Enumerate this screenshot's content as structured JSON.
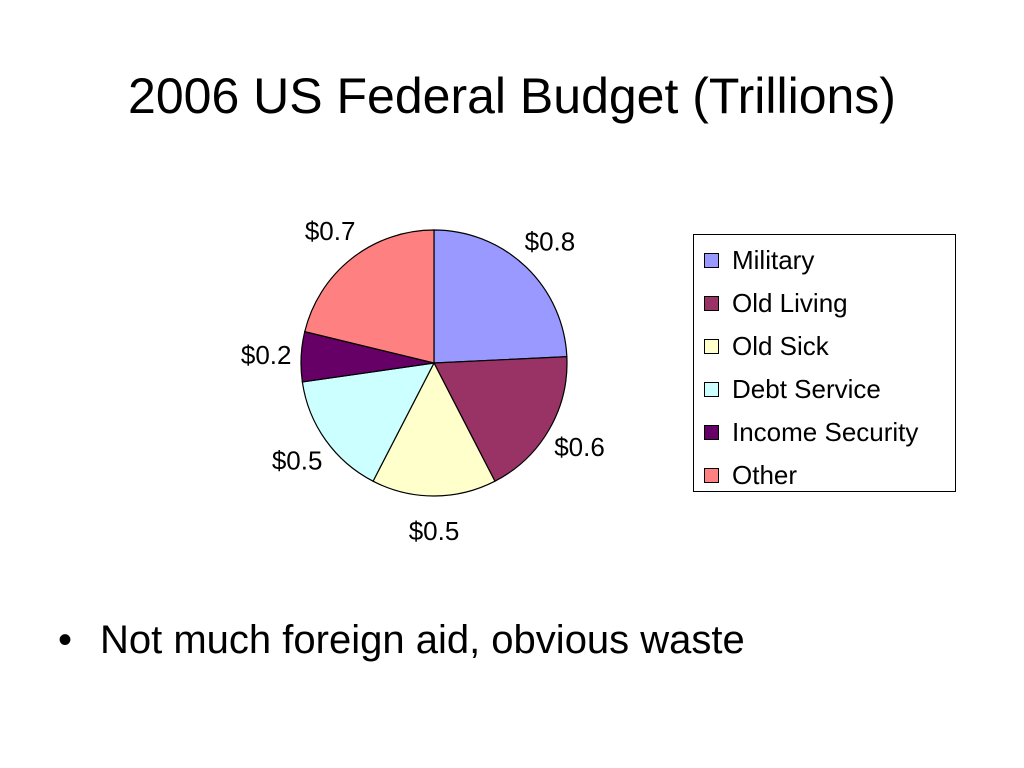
{
  "slide": {
    "bullets": [
      {
        "marker": "•",
        "text": "Not much foreign aid, obvious waste"
      }
    ]
  },
  "chart_data": {
    "type": "pie",
    "title": "2006 US Federal Budget (Trillions)",
    "categories": [
      "Military",
      "Old Living",
      "Old Sick",
      "Debt Service",
      "Income Security",
      "Other"
    ],
    "values": [
      0.8,
      0.6,
      0.5,
      0.5,
      0.2,
      0.7
    ],
    "data_labels": [
      "$0.8",
      "$0.6",
      "$0.5",
      "$0.5",
      "$0.2",
      "$0.7"
    ],
    "colors": [
      "#9999FF",
      "#993366",
      "#FFFFCC",
      "#CCFFFF",
      "#660066",
      "#FF8080"
    ],
    "slice_order": "clockwise from top",
    "legend": {
      "position": "right",
      "entries": [
        "Military",
        "Old Living",
        "Old Sick",
        "Debt Service",
        "Income Security",
        "Other"
      ]
    }
  }
}
